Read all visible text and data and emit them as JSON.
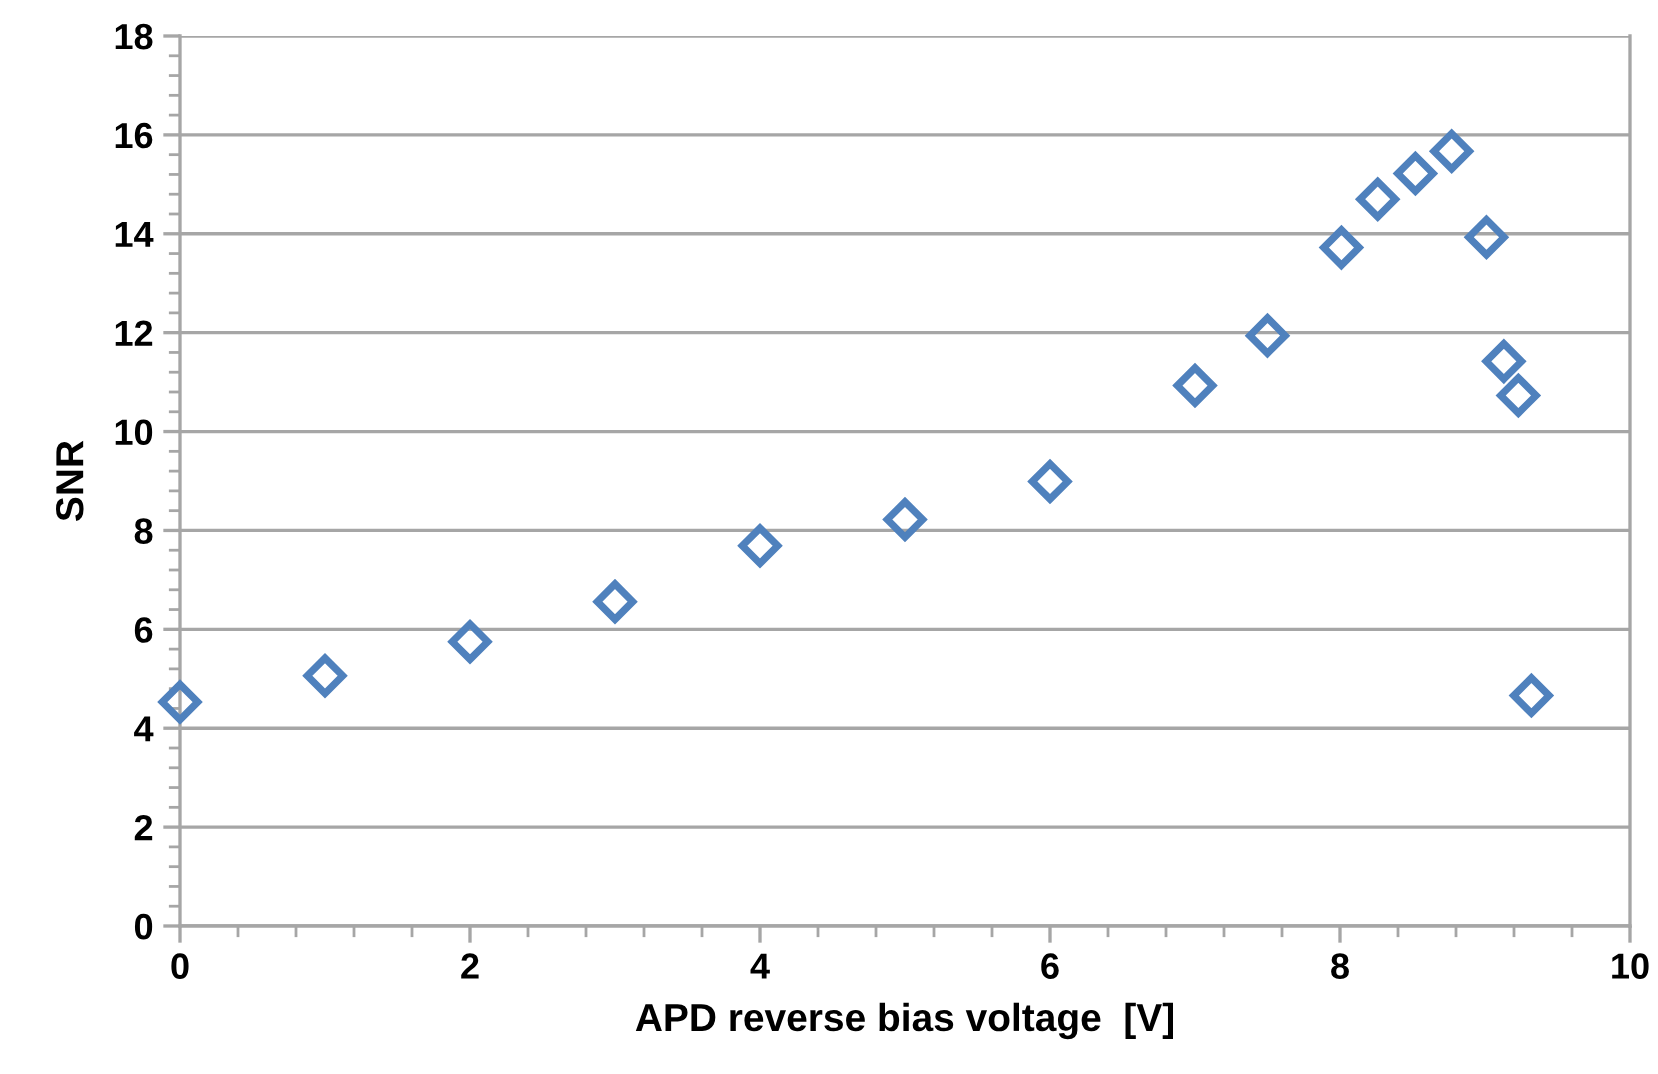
{
  "chart_data": {
    "type": "scatter",
    "xlabel": "APD reverse bias voltage  [V]",
    "ylabel": "SNR",
    "x": [
      0,
      1,
      2,
      3,
      4,
      5,
      6,
      7,
      7.5,
      8.01,
      8.26,
      8.52,
      8.77,
      9.01,
      9.13,
      9.23,
      9.32
    ],
    "series": [
      {
        "color": "#4f81bd",
        "values": [
          4.53,
          5.06,
          5.75,
          6.56,
          7.69,
          8.22,
          8.99,
          10.93,
          11.94,
          13.72,
          14.7,
          15.22,
          15.67,
          13.93,
          11.42,
          10.73,
          4.66
        ]
      }
    ],
    "xlim": [
      0,
      10
    ],
    "xticks": [
      0,
      2,
      4,
      6,
      8,
      10
    ],
    "ylim": [
      0,
      18
    ],
    "yticks": [
      0,
      2,
      4,
      6,
      8,
      10,
      12,
      14,
      16,
      18
    ],
    "grid": "y",
    "marker": "diamond",
    "legend": false
  }
}
